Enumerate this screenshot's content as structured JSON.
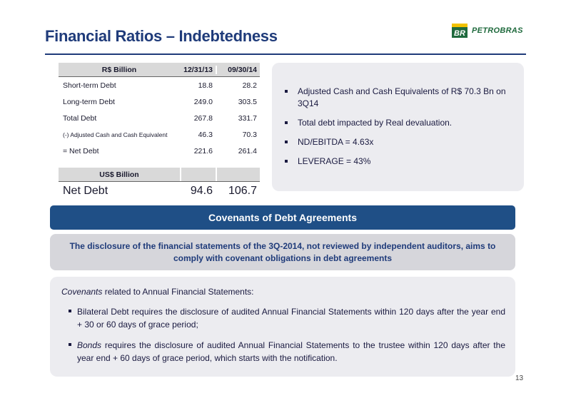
{
  "title": "Financial Ratios – Indebtedness",
  "logo": {
    "mark": "BR",
    "word": "PETROBRAS",
    "color_green": "#1f6a3d",
    "color_yellow": "#f2c200"
  },
  "table": {
    "headers": [
      "R$ Billion",
      "12/31/13",
      "09/30/14"
    ],
    "rows": [
      {
        "label": "Short-term Debt",
        "v1": "18.8",
        "v2": "28.2"
      },
      {
        "label": "Long-term Debt",
        "v1": "249.0",
        "v2": "303.5"
      },
      {
        "label": "Total Debt",
        "v1": "267.8",
        "v2": "331.7"
      },
      {
        "label": "(-) Adjusted Cash and Cash Equivalent",
        "v1": "46.3",
        "v2": "70.3"
      },
      {
        "label": "= Net Debt",
        "v1": "221.6",
        "v2": "261.4"
      }
    ],
    "usd_header": "US$ Billion",
    "usd_row": {
      "label": "Net Debt",
      "v1": "94.6",
      "v2": "106.7"
    }
  },
  "bullets": [
    "Adjusted Cash and Cash Equivalents of R$ 70.3 Bn on 3Q14",
    "Total debt impacted by Real devaluation.",
    "ND/EBITDA = 4.63x",
    "LEVERAGE = 43%"
  ],
  "covenants": {
    "bar_label": "Covenants of Debt Agreements",
    "disclosure": "The disclosure of the financial statements of the 3Q-2014, not reviewed by independent auditors, aims to comply with covenant obligations in debt agreements",
    "intro_italic": "Covenants",
    "intro_rest": " related to Annual Financial Statements:",
    "item1": "Bilateral Debt requires the disclosure of audited Annual Financial Statements within 120 days after the year end + 30 or 60 days of grace period;",
    "item2_italic": "Bonds",
    "item2_rest": " requires the disclosure of audited Annual Financial Statements to the trustee within 120 days after the year end + 60 days of grace period, which starts with the notification."
  },
  "page_number": "13"
}
